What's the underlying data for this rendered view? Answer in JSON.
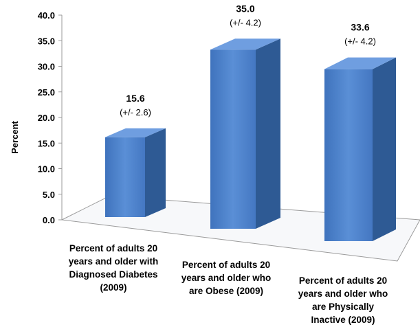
{
  "chart_data": {
    "type": "bar",
    "title": "",
    "xlabel": "",
    "ylabel": "Percent",
    "ylim": [
      0,
      40
    ],
    "ticks": [
      "0.0",
      "5.0",
      "10.0",
      "15.0",
      "20.0",
      "25.0",
      "30.0",
      "35.0",
      "40.0"
    ],
    "categories": [
      [
        "Percent of adults 20",
        "years and older with",
        "Diagnosed Diabetes",
        "(2009)"
      ],
      [
        "Percent of adults 20",
        "years and older who",
        "are Obese (2009)"
      ],
      [
        "Percent of adults 20",
        "years and older who",
        "are Physically",
        "Inactive (2009)"
      ]
    ],
    "values": [
      15.6,
      35.0,
      33.6
    ],
    "value_labels": [
      "15.6",
      "35.0",
      "33.6"
    ],
    "error_labels": [
      "(+/- 2.6)",
      "(+/- 4.2)",
      "(+/- 4.2)"
    ],
    "grid": false,
    "colors": {
      "bar_front": "#4a7fc8",
      "bar_top": "#6f9ee0",
      "bar_side": "#2e5a94",
      "axis": "#9a9a9a"
    }
  }
}
